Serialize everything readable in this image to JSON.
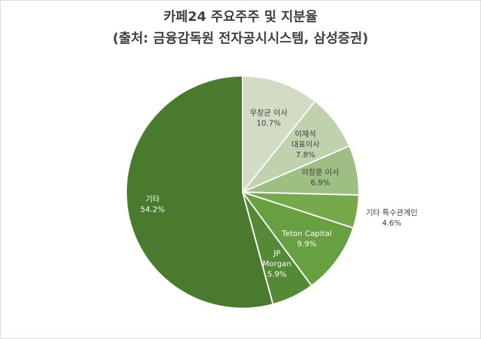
{
  "chart_data": {
    "type": "pie",
    "title_line1": "카페24 주요주주 및 지분율",
    "title_line2": "(출처: 금융감독원 전자공시시스템, 삼성증권)",
    "slices": [
      {
        "label_lines": [
          "우창균 이사"
        ],
        "value": 10.7,
        "value_label": "10.7%",
        "color": "#d1dcc5",
        "text_color": "#404040"
      },
      {
        "label_lines": [
          "이재석",
          "대표이사"
        ],
        "value": 7.8,
        "value_label": "7.8%",
        "color": "#bfd2ad",
        "text_color": "#404040"
      },
      {
        "label_lines": [
          "이창훈 이사"
        ],
        "value": 6.9,
        "value_label": "6.9%",
        "color": "#9dbf84",
        "text_color": "#404040"
      },
      {
        "label_lines": [
          "기타 특수관계인"
        ],
        "value": 4.6,
        "value_label": "4.6%",
        "color": "#75a94c",
        "text_color": "#404040",
        "outside": true
      },
      {
        "label_lines": [
          "Teton Capital"
        ],
        "value": 9.9,
        "value_label": "9.9%",
        "color": "#66a040",
        "text_color": "#ffffff"
      },
      {
        "label_lines": [
          "JP",
          "Morgan"
        ],
        "value": 5.9,
        "value_label": "5.9%",
        "color": "#548a35",
        "text_color": "#ffffff"
      },
      {
        "label_lines": [
          "기타"
        ],
        "value": 54.2,
        "value_label": "54.2%",
        "color": "#4a7a2e",
        "text_color": "#ffffff"
      }
    ]
  }
}
